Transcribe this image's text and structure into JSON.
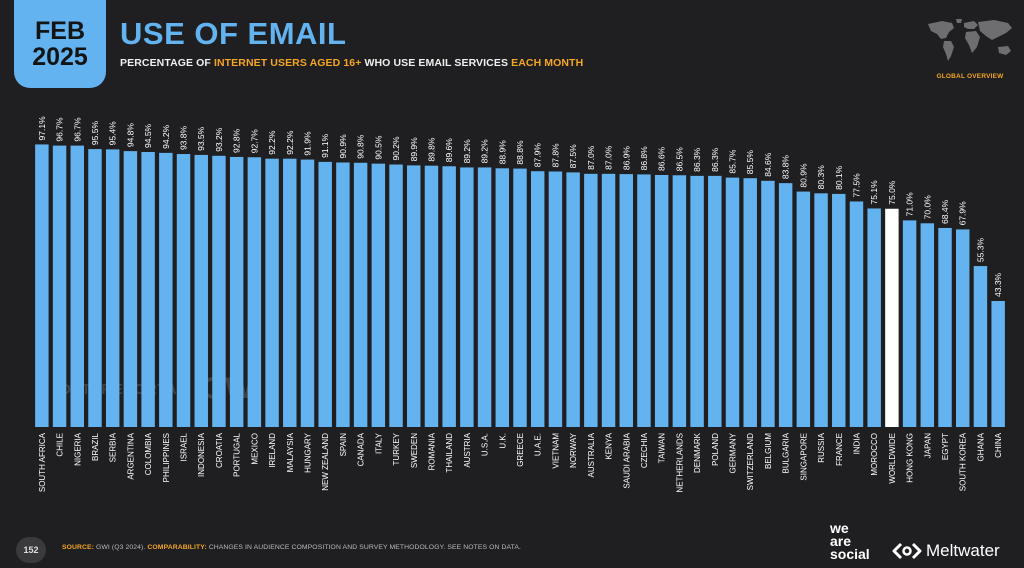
{
  "badge": {
    "month": "FEB",
    "year": "2025"
  },
  "header": {
    "title": "USE OF EMAIL",
    "subtitle_part1": "PERCENTAGE OF ",
    "subtitle_hl1": "INTERNET USERS AGED 16+",
    "subtitle_part2": " WHO USE EMAIL SERVICES ",
    "subtitle_hl2": "EACH MONTH"
  },
  "map_label": "GLOBAL OVERVIEW",
  "watermark": {
    "datareportal": "DATAREPORTAL",
    "gwi": "GWI."
  },
  "footer": {
    "page": "152",
    "source_label": "SOURCE:",
    "source_text": " GWI (Q3 2024). ",
    "comparability_label": "COMPARABILITY:",
    "comparability_text": " CHANGES IN AUDIENCE COMPOSITION AND SURVEY METHODOLOGY. SEE NOTES ON DATA."
  },
  "brands": {
    "was_line1": "we",
    "was_line2": "are",
    "was_line3": "social",
    "meltwater": "Meltwater"
  },
  "colors": {
    "bar": "#63b3f0",
    "highlight_bar": "#ffffff",
    "accent": "#f5a623",
    "background": "#1f1f21"
  },
  "chart_data": {
    "type": "bar",
    "ylim": [
      0,
      100
    ],
    "highlight": "WORLDWIDE",
    "categories": [
      "SOUTH AFRICA",
      "CHILE",
      "NIGERIA",
      "BRAZIL",
      "SERBIA",
      "ARGENTINA",
      "COLOMBIA",
      "PHILIPPINES",
      "ISRAEL",
      "INDONESIA",
      "CROATIA",
      "PORTUGAL",
      "MEXICO",
      "IRELAND",
      "MALAYSIA",
      "HUNGARY",
      "NEW ZEALAND",
      "SPAIN",
      "CANADA",
      "ITALY",
      "TURKEY",
      "SWEDEN",
      "ROMANIA",
      "THAILAND",
      "AUSTRIA",
      "U.S.A.",
      "U.K.",
      "GREECE",
      "U.A.E.",
      "VIETNAM",
      "NORWAY",
      "AUSTRALIA",
      "KENYA",
      "SAUDI ARABIA",
      "CZECHIA",
      "TAIWAN",
      "NETHERLANDS",
      "DENMARK",
      "POLAND",
      "GERMANY",
      "SWITZERLAND",
      "BELGIUM",
      "BULGARIA",
      "SINGAPORE",
      "RUSSIA",
      "FRANCE",
      "INDIA",
      "MOROCCO",
      "WORLDWIDE",
      "HONG KONG",
      "JAPAN",
      "EGYPT",
      "SOUTH KOREA",
      "GHANA",
      "CHINA"
    ],
    "values": [
      97.1,
      96.7,
      96.7,
      95.5,
      95.4,
      94.8,
      94.5,
      94.2,
      93.8,
      93.5,
      93.2,
      92.8,
      92.7,
      92.2,
      92.2,
      91.9,
      91.1,
      90.9,
      90.8,
      90.5,
      90.2,
      89.9,
      89.8,
      89.6,
      89.2,
      89.2,
      88.9,
      88.8,
      87.9,
      87.8,
      87.5,
      87.0,
      87.0,
      86.9,
      86.8,
      86.6,
      86.5,
      86.3,
      86.3,
      85.7,
      85.5,
      84.6,
      83.8,
      80.9,
      80.3,
      80.1,
      77.5,
      75.1,
      75.0,
      71.0,
      70.0,
      68.4,
      67.9,
      55.3,
      43.3
    ],
    "value_labels": [
      "97.1%",
      "96.7%",
      "96.7%",
      "95.5%",
      "95.4%",
      "94.8%",
      "94.5%",
      "94.2%",
      "93.8%",
      "93.5%",
      "93.2%",
      "92.8%",
      "92.7%",
      "92.2%",
      "92.2%",
      "91.9%",
      "91.1%",
      "90.9%",
      "90.8%",
      "90.5%",
      "90.2%",
      "89.9%",
      "89.8%",
      "89.6%",
      "89.2%",
      "89.2%",
      "88.9%",
      "88.8%",
      "87.9%",
      "87.8%",
      "87.5%",
      "87.0%",
      "87.0%",
      "86.9%",
      "86.8%",
      "86.6%",
      "86.5%",
      "86.3%",
      "86.3%",
      "85.7%",
      "85.5%",
      "84.6%",
      "83.8%",
      "80.9%",
      "80.3%",
      "80.1%",
      "77.5%",
      "75.1%",
      "75.0%",
      "71.0%",
      "70.0%",
      "68.4%",
      "67.9%",
      "55.3%",
      "43.3%"
    ]
  }
}
